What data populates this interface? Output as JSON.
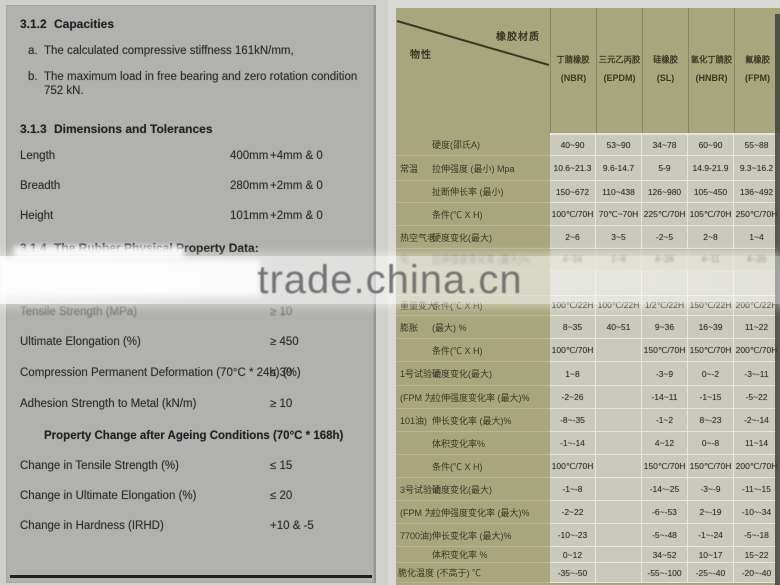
{
  "watermark": {
    "text": "trade.china.cn"
  },
  "colors": {
    "left_page_bg": "#b1b1af",
    "table_label_bg": "#a8a67c",
    "table_cell_bg": "#cac9bd",
    "watermark_text": "#6f6f6f"
  },
  "left_doc": {
    "lines": [
      {
        "type": "heading",
        "num": "3.1.2",
        "title": "Capacities",
        "m": "m2"
      },
      {
        "type": "list",
        "marker": "a.",
        "text": "The calculated compressive stiffness 161kN/mm,",
        "m": "m13"
      },
      {
        "type": "list",
        "marker": "b.",
        "text": "The maximum load in free bearing and zero rotation condition 752 kN.",
        "m": "m12"
      },
      {
        "type": "heading",
        "num": "3.1.3",
        "title": "Dimensions and Tolerances",
        "m": "m24"
      },
      {
        "type": "dim",
        "label": "Length",
        "value": "400mm",
        "tol": "+4mm & 0",
        "m": "m13"
      },
      {
        "type": "dim",
        "label": "Breadth",
        "value": "280mm",
        "tol": "+2mm & 0",
        "m": "m16"
      },
      {
        "type": "dim",
        "label": "Height",
        "value": "101mm",
        "tol": "+2mm & 0",
        "m": "m16"
      },
      {
        "type": "heading",
        "num": "3.1.4",
        "title": "The Rubber Physical Property Data:",
        "m": "m18"
      },
      {
        "type": "gap"
      },
      {
        "type": "prop",
        "label": "Tensile Strength (MPa)",
        "value": "≥ 10",
        "faded": true,
        "m": "m2"
      },
      {
        "type": "prop",
        "label": "Ultimate Elongation (%)",
        "value": "≥ 450",
        "m": "m16"
      },
      {
        "type": "prop",
        "label": "Compression Permanent Deformation (70°C * 24h) (%)",
        "value": "≤ 30",
        "m": "m17"
      },
      {
        "type": "prop",
        "label": "Adhesion Strength to Metal (kN/m)",
        "value": "≥ 10",
        "m": "m17"
      },
      {
        "type": "subheading",
        "text": "Property Change after Ageing Conditions (70°C * 168h)",
        "m": "m18"
      },
      {
        "type": "prop",
        "label": "Change in Tensile Strength (%)",
        "value": "≤ 15",
        "m": "m16"
      },
      {
        "type": "prop",
        "label": "Change in Ultimate Elongation (%)",
        "value": "≤ 20",
        "m": "m16"
      },
      {
        "type": "prop",
        "label": "Change in Hardness (IRHD)",
        "value": "+10 & -5",
        "m": "m16"
      }
    ]
  },
  "table": {
    "corner": {
      "top_label": "橡胶材质",
      "bottom_label": "物性"
    },
    "columns": [
      {
        "name": "丁腈橡胶",
        "abbr": "(NBR)"
      },
      {
        "name": "三元乙丙胶",
        "abbr": "(EPDM)"
      },
      {
        "name": "硅橡胶",
        "abbr": "(SL)"
      },
      {
        "name": "氢化丁腈胶",
        "abbr": "(HNBR)"
      },
      {
        "name": "氟橡胶",
        "abbr": "(FPM)"
      }
    ],
    "rows": [
      {
        "group": "",
        "prop": "硬度(邵氏A)",
        "values": [
          "40~90",
          "53~90",
          "34~78",
          "60~90",
          "55~88"
        ]
      },
      {
        "group": "常温",
        "prop": "拉伸强度 (最小) Mpa",
        "values": [
          "10.6~21.3",
          "9.6-14.7",
          "5-9",
          "14.9-21.9",
          "9.3~16.2"
        ]
      },
      {
        "group": "",
        "prop": "扯断伸长率 (最小)",
        "values": [
          "150~672",
          "110~438",
          "126~980",
          "105~450",
          "136~492"
        ]
      },
      {
        "group": "",
        "prop": "条件(℃ X H)",
        "values": [
          "100℃/70H",
          "70℃~70H",
          "225℃/70H",
          "105℃/70H",
          "250℃/70H"
        ]
      },
      {
        "group": "热空气老",
        "prop": "硬度变化(最大)",
        "values": [
          "2~6",
          "3~5",
          "-2~5",
          "2~8",
          "1~4"
        ]
      },
      {
        "group": "化",
        "prop": "拉伸强度变化率 (最大)%",
        "values": [
          "4~24",
          "1~8",
          "4~26",
          "4~11",
          "4~20"
        ],
        "obscured": true
      },
      {
        "group": "",
        "prop": "",
        "values": [
          "",
          "",
          "",
          "",
          ""
        ],
        "spacer": true
      },
      {
        "group": "重量变大",
        "prop": "条件(℃ X H)",
        "values": [
          "100℃/22H",
          "100℃/22H",
          "1/2℃/22H",
          "150℃/22H",
          "200℃/22H"
        ]
      },
      {
        "group": "膨胀",
        "prop": "(最大) %",
        "values": [
          "8~35",
          "40~51",
          "9~36",
          "16~39",
          "11~22"
        ]
      },
      {
        "group": "",
        "prop": "条件(℃ X H)",
        "values": [
          "100℃/70H",
          "",
          "150℃/70H",
          "150℃/70H",
          "200℃/70H"
        ]
      },
      {
        "group": "1号试验油",
        "prop": "硬度变化(最大)",
        "values": [
          "1~8",
          "",
          "-3~9",
          "0~-2",
          "-3~-11"
        ]
      },
      {
        "group": "(FPM 为",
        "prop": "拉伸强度变化率 (最大)%",
        "values": [
          "-2~26",
          "",
          "-14~11",
          "-1~15",
          "-5~22"
        ]
      },
      {
        "group": "101油)",
        "prop": "伸长变化率 (最大)%",
        "values": [
          "-8~-35",
          "",
          "-1~2",
          "8~-23",
          "-2~-14"
        ]
      },
      {
        "group": "",
        "prop": "体积变化率%",
        "values": [
          "-1~-14",
          "",
          "4~12",
          "0~-8",
          "11~14"
        ]
      },
      {
        "group": "",
        "prop": "条件(℃ X H)",
        "values": [
          "100℃/70H",
          "",
          "150℃/70H",
          "150℃/70H",
          "200℃/70H"
        ]
      },
      {
        "group": "3号试验油",
        "prop": "硬度变化(最大)",
        "values": [
          "-1~-8",
          "",
          "-14~-25",
          "-3~-9",
          "-11~-15"
        ]
      },
      {
        "group": "(FPM 为",
        "prop": "拉伸强度变化率 (最大)%",
        "values": [
          "-2~22",
          "",
          "-6~-53",
          "2~-19",
          "-10~-34"
        ]
      },
      {
        "group": "7700油)",
        "prop": "伸长变化率 (最大)%",
        "values": [
          "-10~-23",
          "",
          "-5~-48",
          "-1~-24",
          "-5~-18"
        ]
      },
      {
        "group": "",
        "prop": "体积变化率 %",
        "values": [
          "0~12",
          "",
          "34~52",
          "10~17",
          "15~22"
        ]
      },
      {
        "group": "",
        "prop": "脆化温度 (不高于) ℃",
        "values": [
          "-35~-50",
          "",
          "-55~-100",
          "-25~-40",
          "-20~-40"
        ],
        "full_label": true
      }
    ]
  }
}
